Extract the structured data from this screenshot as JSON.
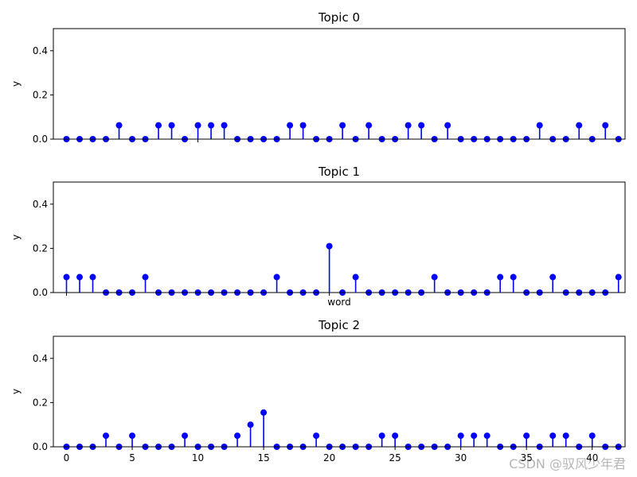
{
  "watermark": "CSDN @驭风少年君",
  "colors": {
    "stem": "#0000ff",
    "axis": "#000000"
  },
  "chart_data": [
    {
      "type": "stem",
      "title": "Topic 0",
      "xlabel": "",
      "ylabel": "y",
      "xlim": [
        -1,
        42.5
      ],
      "ylim": [
        0,
        0.5
      ],
      "yticks": [
        "0.0",
        "0.2",
        "0.4"
      ],
      "x": [
        0,
        1,
        2,
        3,
        4,
        5,
        6,
        7,
        8,
        9,
        10,
        11,
        12,
        13,
        14,
        15,
        16,
        17,
        18,
        19,
        20,
        21,
        22,
        23,
        24,
        25,
        26,
        27,
        28,
        29,
        30,
        31,
        32,
        33,
        34,
        35,
        36,
        37,
        38,
        39,
        40,
        41,
        42
      ],
      "values": [
        0,
        0,
        0,
        0,
        0.0625,
        0,
        0,
        0.0625,
        0.0625,
        0,
        0.0625,
        0.0625,
        0.0625,
        0,
        0,
        0,
        0,
        0.0625,
        0.0625,
        0,
        0,
        0.0625,
        0,
        0.0625,
        0,
        0,
        0.0625,
        0.0625,
        0,
        0.0625,
        0,
        0,
        0,
        0,
        0,
        0,
        0.0625,
        0,
        0,
        0.0625,
        0,
        0.0625,
        0
      ]
    },
    {
      "type": "stem",
      "title": "Topic 1",
      "xlabel": "word",
      "ylabel": "y",
      "xlim": [
        -1,
        42.5
      ],
      "ylim": [
        0,
        0.5
      ],
      "yticks": [
        "0.0",
        "0.2",
        "0.4"
      ],
      "x": [
        0,
        1,
        2,
        3,
        4,
        5,
        6,
        7,
        8,
        9,
        10,
        11,
        12,
        13,
        14,
        15,
        16,
        17,
        18,
        19,
        20,
        21,
        22,
        23,
        24,
        25,
        26,
        27,
        28,
        29,
        30,
        31,
        32,
        33,
        34,
        35,
        36,
        37,
        38,
        39,
        40,
        41,
        42
      ],
      "values": [
        0.07,
        0.07,
        0.07,
        0,
        0,
        0,
        0.07,
        0,
        0,
        0,
        0,
        0,
        0,
        0,
        0,
        0,
        0.07,
        0,
        0,
        0,
        0.21,
        0,
        0.07,
        0,
        0,
        0,
        0,
        0,
        0.07,
        0,
        0,
        0,
        0,
        0.07,
        0.07,
        0,
        0,
        0.07,
        0,
        0,
        0,
        0,
        0.07
      ]
    },
    {
      "type": "stem",
      "title": "Topic 2",
      "xlabel": "",
      "ylabel": "y",
      "xlim": [
        -1,
        42.5
      ],
      "ylim": [
        0,
        0.5
      ],
      "yticks": [
        "0.0",
        "0.2",
        "0.4"
      ],
      "xticks": [
        "0",
        "5",
        "10",
        "15",
        "20",
        "25",
        "30",
        "35",
        "40"
      ],
      "x": [
        0,
        1,
        2,
        3,
        4,
        5,
        6,
        7,
        8,
        9,
        10,
        11,
        12,
        13,
        14,
        15,
        16,
        17,
        18,
        19,
        20,
        21,
        22,
        23,
        24,
        25,
        26,
        27,
        28,
        29,
        30,
        31,
        32,
        33,
        34,
        35,
        36,
        37,
        38,
        39,
        40,
        41,
        42
      ],
      "values": [
        0,
        0,
        0,
        0.05,
        0,
        0.05,
        0,
        0,
        0,
        0.05,
        0,
        0,
        0,
        0.05,
        0.1,
        0.155,
        0,
        0,
        0,
        0.05,
        0,
        0,
        0,
        0,
        0.05,
        0.05,
        0,
        0,
        0,
        0,
        0.05,
        0.05,
        0.05,
        0,
        0,
        0.05,
        0,
        0.05,
        0.05,
        0,
        0.05,
        0,
        0
      ]
    }
  ]
}
